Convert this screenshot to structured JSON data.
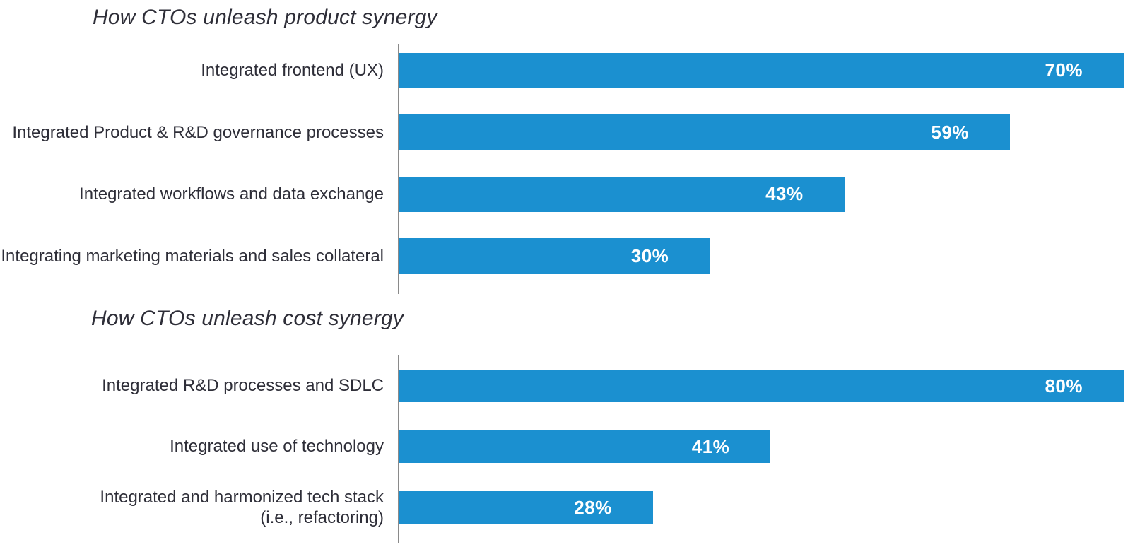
{
  "accent_color": "#1b90d0",
  "text_color": "#2e2e38",
  "axis_color": "#8a8a8a",
  "value_label_color": "#ffffff",
  "chart_data": [
    {
      "type": "bar",
      "orientation": "horizontal",
      "title": "How CTOs unleash product synergy",
      "categories": [
        "Integrated frontend (UX)",
        "Integrated Product & R&D governance processes",
        "Integrated workflows and data exchange",
        "Integrating marketing materials and sales collateral"
      ],
      "values": [
        70,
        59,
        43,
        30
      ],
      "value_labels": [
        "70%",
        "59%",
        "43%",
        "30%"
      ],
      "xlabel": "",
      "ylabel": "",
      "xlim": [
        0,
        70
      ],
      "grid": false,
      "legend": false,
      "bar_color": "#1b90d0"
    },
    {
      "type": "bar",
      "orientation": "horizontal",
      "title": "How CTOs unleash cost synergy",
      "categories": [
        "Integrated R&D processes and SDLC",
        "Integrated use of technology",
        "Integrated and harmonized tech stack\n(i.e., refactoring)"
      ],
      "values": [
        80,
        41,
        28
      ],
      "value_labels": [
        "80%",
        "41%",
        "28%"
      ],
      "xlabel": "",
      "ylabel": "",
      "xlim": [
        0,
        80
      ],
      "grid": false,
      "legend": false,
      "bar_color": "#1b90d0"
    }
  ]
}
